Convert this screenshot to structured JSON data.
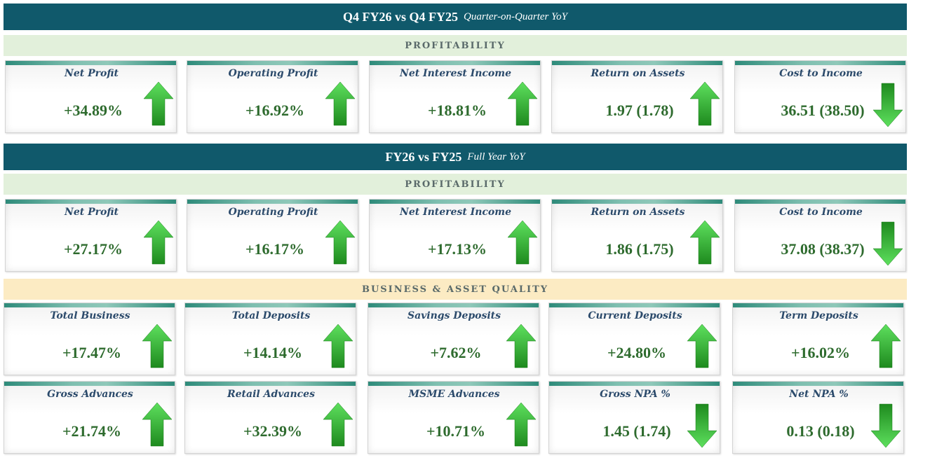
{
  "sections": {
    "q4": {
      "title": "Q4 FY26  vs  Q4 FY25",
      "subtitle": "Quarter-on-Quarter YoY",
      "group": "PROFITABILITY"
    },
    "fy": {
      "title": "FY26  vs  FY25",
      "subtitle": "Full Year YoY",
      "group": "PROFITABILITY",
      "group2": "BUSINESS & ASSET QUALITY"
    }
  },
  "colors": {
    "banner": "#10596b",
    "value": "#2e6b2e",
    "title": "#2b4a6b",
    "arrow": "#35c635"
  },
  "cards": {
    "q4": [
      {
        "title": "Net Profit",
        "value": "+34.89%",
        "arrow": "up-arrow-icon"
      },
      {
        "title": "Operating Profit",
        "value": "+16.92%",
        "arrow": "up-arrow-icon"
      },
      {
        "title": "Net Interest Income",
        "value": "+18.81%",
        "arrow": "up-arrow-icon"
      },
      {
        "title": "Return on Assets",
        "value": "1.97 (1.78)",
        "arrow": "up-arrow-icon"
      },
      {
        "title": "Cost to Income",
        "value": "36.51 (38.50)",
        "arrow": "down-arrow-icon"
      }
    ],
    "fy": [
      {
        "title": "Net Profit",
        "value": "+27.17%",
        "arrow": "up-arrow-icon"
      },
      {
        "title": "Operating Profit",
        "value": "+16.17%",
        "arrow": "up-arrow-icon"
      },
      {
        "title": "Net Interest Income",
        "value": "+17.13%",
        "arrow": "up-arrow-icon"
      },
      {
        "title": "Return on Assets",
        "value": "1.86 (1.75)",
        "arrow": "up-arrow-icon"
      },
      {
        "title": "Cost to Income",
        "value": "37.08 (38.37)",
        "arrow": "down-arrow-icon"
      }
    ],
    "business": [
      {
        "title": "Total Business",
        "value": "+17.47%",
        "arrow": "up-arrow-icon"
      },
      {
        "title": "Total Deposits",
        "value": "+14.14%",
        "arrow": "up-arrow-icon"
      },
      {
        "title": "Savings Deposits",
        "value": "+7.62%",
        "arrow": "up-arrow-icon"
      },
      {
        "title": "Current Deposits",
        "value": "+24.80%",
        "arrow": "up-arrow-icon"
      },
      {
        "title": "Term Deposits",
        "value": "+16.02%",
        "arrow": "up-arrow-icon"
      }
    ],
    "asset": [
      {
        "title": "Gross Advances",
        "value": "+21.74%",
        "arrow": "up-arrow-icon"
      },
      {
        "title": "Retail Advances",
        "value": "+32.39%",
        "arrow": "up-arrow-icon"
      },
      {
        "title": "MSME Advances",
        "value": "+10.71%",
        "arrow": "up-arrow-icon"
      },
      {
        "title": "Gross NPA %",
        "value": "1.45 (1.74)",
        "arrow": "down-arrow-icon"
      },
      {
        "title": "Net NPA %",
        "value": "0.13 (0.18)",
        "arrow": "down-arrow-icon"
      }
    ]
  }
}
